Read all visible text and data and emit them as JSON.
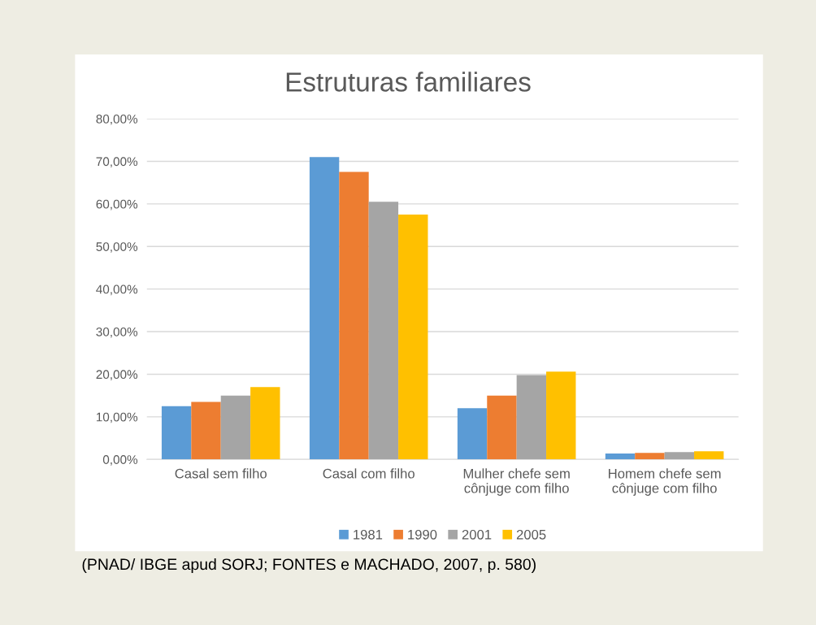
{
  "chart_data": {
    "type": "bar",
    "title": "Estruturas familiares",
    "categories": [
      "Casal sem filho",
      "Casal com filho",
      "Mulher chefe sem\ncônjuge com filho",
      "Homem chefe sem\ncônjuge com filho"
    ],
    "series": [
      {
        "name": "1981",
        "color": "#5b9bd5",
        "values": [
          12.5,
          71,
          12,
          1.4
        ]
      },
      {
        "name": "1990",
        "color": "#ed7d31",
        "values": [
          13.5,
          67.5,
          15,
          1.5
        ]
      },
      {
        "name": "2001",
        "color": "#a5a5a5",
        "values": [
          15,
          60.5,
          19.8,
          1.7
        ]
      },
      {
        "name": "2005",
        "color": "#ffc000",
        "values": [
          17,
          57.5,
          20.6,
          1.9
        ]
      }
    ],
    "ylim": [
      0,
      80
    ],
    "yticks": [
      {
        "value": 0,
        "label": "0,00%"
      },
      {
        "value": 10,
        "label": "10,00%"
      },
      {
        "value": 20,
        "label": "20,00%"
      },
      {
        "value": 30,
        "label": "30,00%"
      },
      {
        "value": 40,
        "label": "40,00%"
      },
      {
        "value": 50,
        "label": "50,00%"
      },
      {
        "value": 60,
        "label": "60,00%"
      },
      {
        "value": 70,
        "label": "70,00%"
      },
      {
        "value": 80,
        "label": "80,00%"
      }
    ],
    "grid": "y",
    "legend": "bottom",
    "annotations": [
      "(PNAD/ IBGE apud SORJ; FONTES e MACHADO, 2007, p. 580)"
    ]
  }
}
